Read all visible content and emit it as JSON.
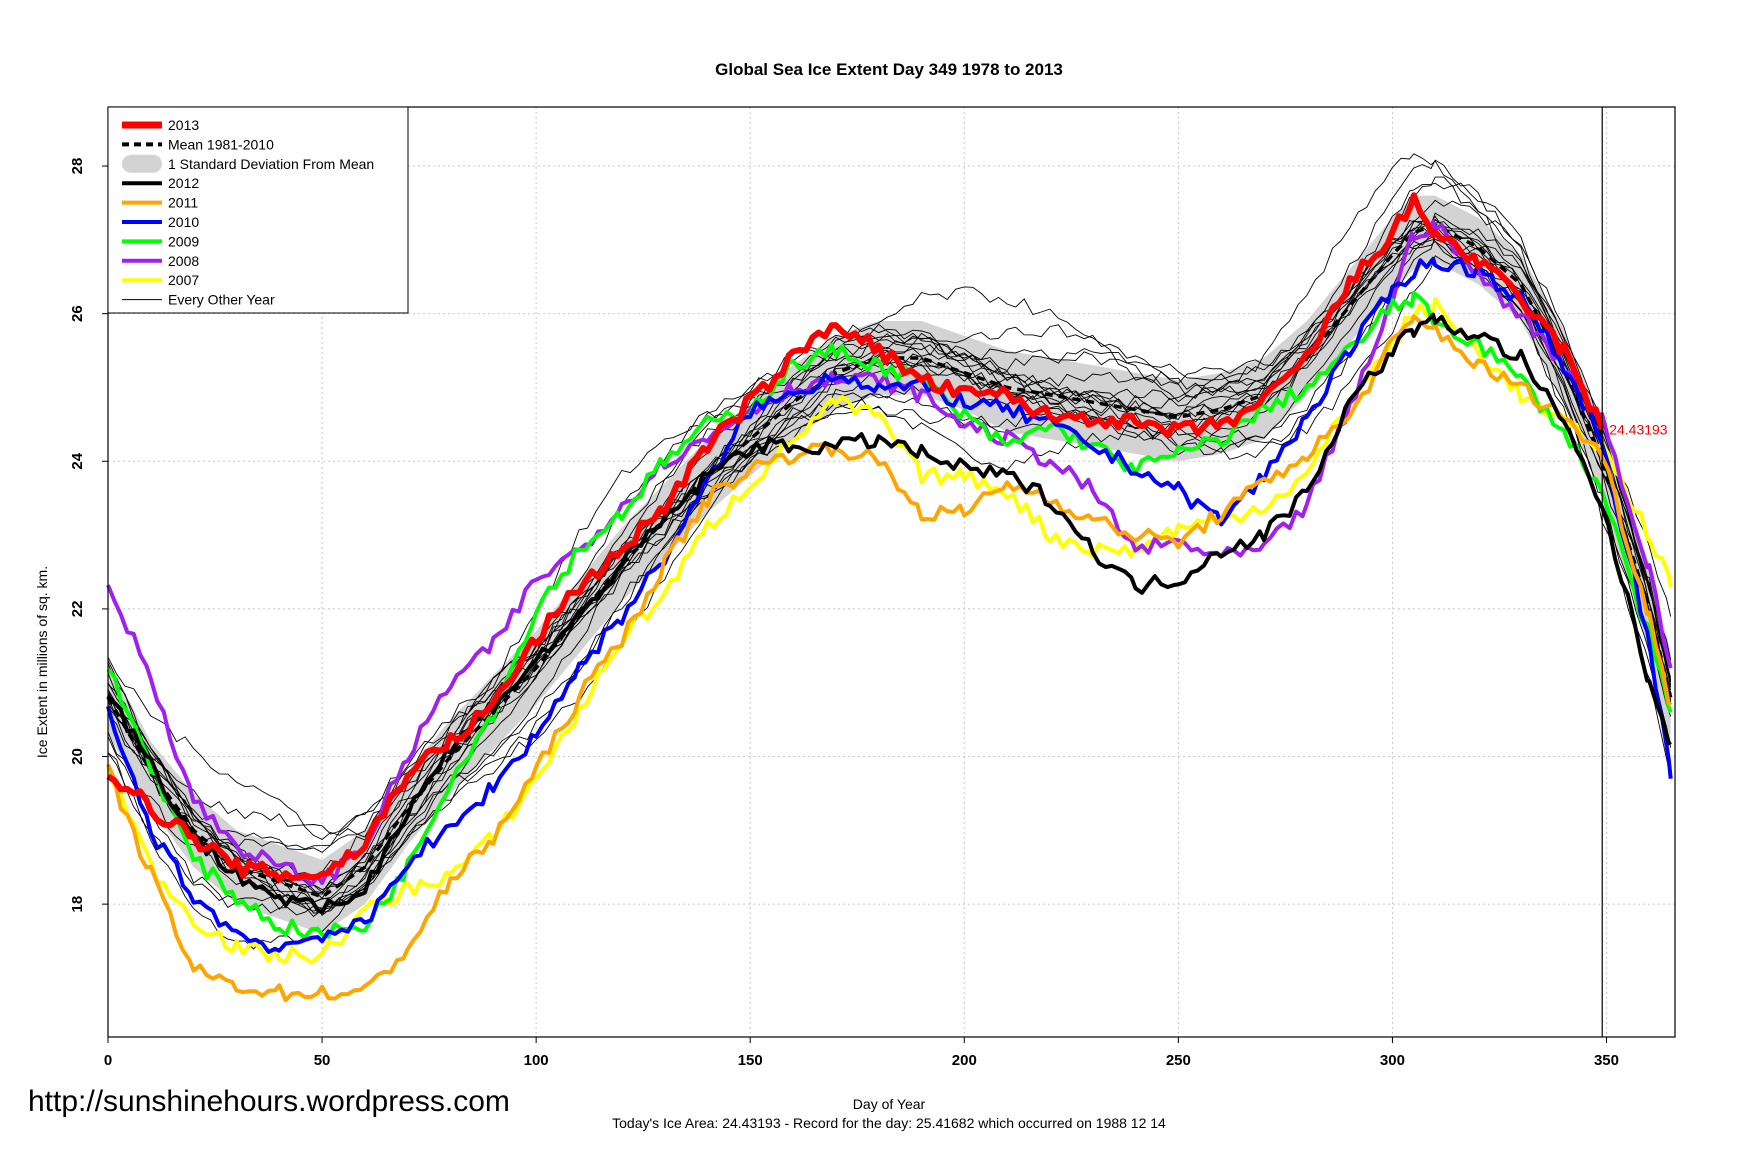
{
  "chart_data": {
    "type": "line",
    "title": "Global Sea Ice Extent Day 349 1978 to 2013",
    "xlabel": "Day of Year",
    "ylabel": "Ice Extent in millions of sq. km.",
    "xlim": [
      0,
      366
    ],
    "ylim": [
      16.2,
      28.8
    ],
    "x_ticks": [
      0,
      50,
      100,
      150,
      200,
      250,
      300,
      350
    ],
    "y_ticks": [
      18,
      20,
      22,
      24,
      26,
      28
    ],
    "grid": true,
    "legend_position": "top-left",
    "current_day": 349,
    "current_value_label": "24.43193",
    "footer": "Today's Ice Area: 24.43193  - Record for the day: 25.41682 which occurred on 1988 12 14",
    "watermark": "http://sunshinehours.wordpress.com",
    "legend": [
      {
        "label": "2013",
        "color": "#ff0000",
        "style": "thick"
      },
      {
        "label": "Mean 1981-2010",
        "color": "#000000",
        "style": "dashed"
      },
      {
        "label": "1 Standard Deviation From Mean",
        "color": "#d3d3d3",
        "style": "band"
      },
      {
        "label": "2012",
        "color": "#000000",
        "style": "solid"
      },
      {
        "label": "2011",
        "color": "#ffa500",
        "style": "solid"
      },
      {
        "label": "2010",
        "color": "#0000ff",
        "style": "solid"
      },
      {
        "label": "2009",
        "color": "#00ff00",
        "style": "solid"
      },
      {
        "label": "2008",
        "color": "#a020f0",
        "style": "solid"
      },
      {
        "label": "2007",
        "color": "#ffff00",
        "style": "solid"
      },
      {
        "label": "Every Other Year",
        "color": "#000000",
        "style": "thin"
      }
    ],
    "x": [
      0,
      10,
      20,
      30,
      40,
      50,
      60,
      70,
      80,
      90,
      100,
      110,
      120,
      130,
      140,
      150,
      160,
      170,
      180,
      190,
      200,
      210,
      220,
      230,
      240,
      250,
      260,
      270,
      280,
      290,
      300,
      305,
      310,
      320,
      330,
      340,
      349,
      360,
      365
    ],
    "mean": [
      20.8,
      19.8,
      19.0,
      18.5,
      18.3,
      18.1,
      18.5,
      19.3,
      20.0,
      20.6,
      21.2,
      21.9,
      22.6,
      23.2,
      23.8,
      24.3,
      24.8,
      25.2,
      25.4,
      25.4,
      25.2,
      25.0,
      24.9,
      24.8,
      24.7,
      24.6,
      24.7,
      24.9,
      25.4,
      26.1,
      26.8,
      27.1,
      27.2,
      26.9,
      26.4,
      25.3,
      24.0,
      22.0,
      20.8
    ],
    "std_band": {
      "upper": [
        21.3,
        20.2,
        19.5,
        19.0,
        18.8,
        18.6,
        19.0,
        19.8,
        20.5,
        21.1,
        21.7,
        22.4,
        23.1,
        23.7,
        24.3,
        24.8,
        25.3,
        25.7,
        25.9,
        25.9,
        25.7,
        25.5,
        25.4,
        25.3,
        25.2,
        25.1,
        25.2,
        25.4,
        25.9,
        26.6,
        27.3,
        27.6,
        27.6,
        27.3,
        26.8,
        25.8,
        24.5,
        22.6,
        21.4
      ],
      "lower": [
        20.3,
        19.3,
        18.5,
        18.0,
        17.8,
        17.6,
        18.0,
        18.8,
        19.5,
        20.1,
        20.7,
        21.4,
        22.1,
        22.7,
        23.3,
        23.8,
        24.3,
        24.7,
        24.9,
        24.9,
        24.7,
        24.4,
        24.3,
        24.2,
        24.1,
        24.0,
        24.1,
        24.3,
        24.9,
        25.6,
        26.3,
        26.6,
        26.7,
        26.4,
        25.9,
        24.8,
        23.5,
        21.4,
        20.2
      ]
    },
    "series": [
      {
        "name": "2013",
        "color": "#ff0000",
        "width": 6,
        "values": [
          19.8,
          19.3,
          18.9,
          18.5,
          18.4,
          18.4,
          18.8,
          19.8,
          20.2,
          20.7,
          21.6,
          22.3,
          22.8,
          23.4,
          24.2,
          24.8,
          25.4,
          25.9,
          25.5,
          25.1,
          24.9,
          24.9,
          24.6,
          24.6,
          24.5,
          24.4,
          24.5,
          24.8,
          25.4,
          26.4,
          27.1,
          27.5,
          27.1,
          26.7,
          26.2,
          25.5,
          24.43193,
          null,
          null
        ]
      },
      {
        "name": "2012",
        "color": "#000000",
        "width": 4,
        "values": [
          20.9,
          19.9,
          18.9,
          18.4,
          18.1,
          17.9,
          18.2,
          19.3,
          20.1,
          20.7,
          21.3,
          21.9,
          22.6,
          23.2,
          23.8,
          24.2,
          24.2,
          24.2,
          24.3,
          24.1,
          23.9,
          23.8,
          23.5,
          22.8,
          22.3,
          22.4,
          22.8,
          23.0,
          23.6,
          24.8,
          25.5,
          25.8,
          25.9,
          25.7,
          25.4,
          24.5,
          23.4,
          21.0,
          20.2
        ]
      },
      {
        "name": "2011",
        "color": "#ffa500",
        "width": 4,
        "values": [
          19.8,
          18.4,
          17.1,
          16.9,
          16.8,
          16.8,
          16.8,
          17.4,
          18.3,
          18.9,
          19.8,
          20.8,
          21.6,
          22.6,
          23.5,
          23.9,
          24.1,
          24.2,
          24.0,
          23.3,
          23.3,
          23.7,
          23.5,
          23.2,
          23.0,
          22.9,
          23.3,
          23.7,
          24.1,
          24.6,
          25.6,
          25.9,
          25.8,
          25.3,
          25.0,
          24.6,
          24.1,
          21.9,
          20.7
        ]
      },
      {
        "name": "2010",
        "color": "#0000ff",
        "width": 4,
        "values": [
          20.6,
          19.0,
          18.1,
          17.6,
          17.4,
          17.6,
          17.7,
          18.6,
          19.0,
          19.6,
          20.3,
          21.2,
          21.9,
          22.7,
          23.7,
          24.7,
          24.9,
          25.2,
          25.0,
          25.0,
          24.8,
          24.7,
          24.5,
          24.2,
          23.9,
          23.6,
          23.2,
          23.8,
          24.6,
          25.5,
          26.3,
          26.6,
          26.7,
          26.6,
          26.2,
          25.3,
          24.3,
          21.5,
          19.7
        ]
      },
      {
        "name": "2009",
        "color": "#00ff00",
        "width": 4,
        "values": [
          21.2,
          19.9,
          18.6,
          18.1,
          17.7,
          17.6,
          17.7,
          18.5,
          19.7,
          20.6,
          22.0,
          22.8,
          23.3,
          24.0,
          24.5,
          24.7,
          25.3,
          25.5,
          25.3,
          25.1,
          24.6,
          24.2,
          24.5,
          24.2,
          23.9,
          24.1,
          24.3,
          24.7,
          25.0,
          25.5,
          26.1,
          26.2,
          25.9,
          25.6,
          25.1,
          24.4,
          23.6,
          21.6,
          20.6
        ]
      },
      {
        "name": "2008",
        "color": "#a020f0",
        "width": 4,
        "values": [
          22.3,
          21.1,
          19.4,
          18.8,
          18.5,
          18.3,
          18.8,
          20.0,
          21.0,
          21.5,
          22.4,
          22.8,
          23.4,
          24.0,
          24.3,
          24.7,
          25.0,
          25.1,
          25.1,
          24.9,
          24.5,
          24.3,
          24.0,
          23.6,
          22.8,
          22.9,
          22.7,
          22.8,
          23.4,
          24.7,
          26.2,
          27.1,
          27.2,
          26.5,
          26.0,
          25.3,
          24.6,
          22.5,
          21.2
        ]
      },
      {
        "name": "2007",
        "color": "#ffff00",
        "width": 4,
        "values": [
          19.9,
          18.5,
          17.8,
          17.4,
          17.3,
          17.3,
          17.9,
          18.2,
          18.4,
          18.9,
          19.7,
          20.6,
          21.6,
          22.2,
          23.1,
          23.7,
          24.3,
          24.8,
          24.6,
          23.8,
          23.8,
          23.6,
          23.0,
          22.8,
          22.8,
          23.1,
          23.2,
          23.4,
          23.8,
          24.8,
          25.6,
          26.0,
          26.1,
          25.5,
          24.9,
          24.5,
          24.2,
          23.0,
          22.3
        ]
      }
    ]
  }
}
